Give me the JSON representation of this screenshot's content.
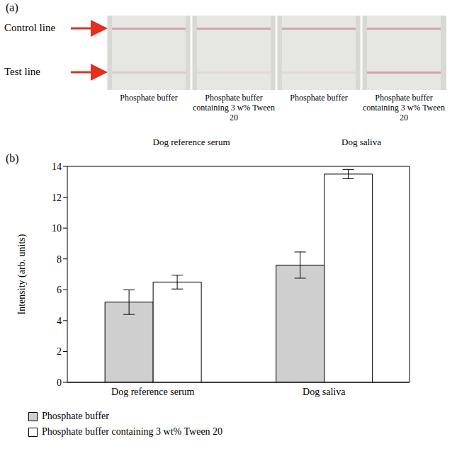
{
  "panel_a": {
    "letter": "(a)",
    "arrows": [
      "Control line",
      "Test line"
    ],
    "strips": [
      "Phosphate buffer",
      "Phosphate buffer containing 3 w% Tween 20",
      "Phosphate buffer",
      "Phosphate buffer containing 3 w% Tween 20"
    ],
    "groups": [
      "Dog reference serum",
      "Dog saliva"
    ]
  },
  "chart_data": {
    "letter": "(b)",
    "type": "bar",
    "categories": [
      "Dog reference serum",
      "Dog saliva"
    ],
    "y_label": "Intensity (arb. units)",
    "series": [
      {
        "name": "Phosphate buffer",
        "color": "#cfcfcf",
        "values": [
          5.2,
          7.6
        ],
        "errors": [
          0.8,
          0.85
        ]
      },
      {
        "name": "Phosphate buffer containing 3 wt% Tween 20",
        "color": "#ffffff",
        "values": [
          6.5,
          13.5
        ],
        "errors": [
          0.45,
          0.3
        ]
      }
    ],
    "ylim": [
      0,
      14
    ],
    "yticks": [
      0,
      2,
      4,
      6,
      8,
      10,
      12,
      14
    ],
    "grid": true,
    "legend": "bottom"
  }
}
